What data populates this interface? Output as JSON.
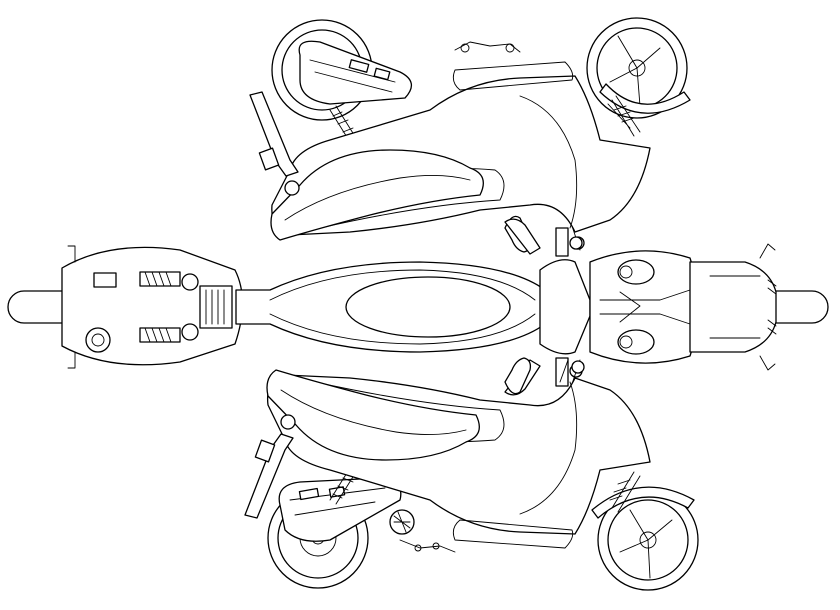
{
  "drawing": {
    "subject": "",
    "views": [
      {
        "name": "side-view-upper"
      },
      {
        "name": "top-view"
      },
      {
        "name": "side-view-lower"
      }
    ],
    "colors": {
      "line": "#000000",
      "background": "#ffffff"
    }
  }
}
